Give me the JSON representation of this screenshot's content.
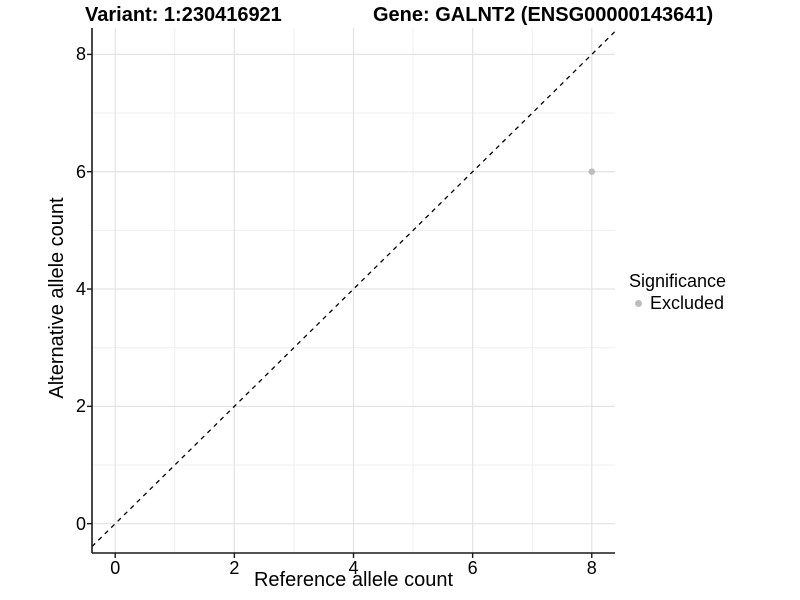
{
  "chart_data": {
    "type": "scatter",
    "titles": {
      "variant": "Variant: 1:230416921",
      "gene": "Gene: GALNT2 (ENSG00000143641)"
    },
    "xlabel": "Reference allele count",
    "ylabel": "Alternative allele count",
    "xlim": [
      -0.39,
      8.39
    ],
    "ylim": [
      -0.5,
      8.45
    ],
    "xticks": [
      0,
      2,
      4,
      6,
      8
    ],
    "yticks": [
      0,
      2,
      4,
      6,
      8
    ],
    "xticks_minor": [
      1,
      3,
      5,
      7
    ],
    "yticks_minor": [
      1,
      3,
      5,
      7
    ],
    "grid": "major+minor",
    "points": [
      {
        "x": 8,
        "y": 6,
        "series": "Excluded"
      }
    ],
    "reference_line": {
      "type": "identity",
      "slope": 1,
      "intercept": 0,
      "style": "dashed"
    },
    "legend": {
      "title": "Significance",
      "position": "right",
      "entries": [
        {
          "label": "Excluded",
          "color": "#bdbdbd"
        }
      ]
    },
    "colors": {
      "point": "#bdbdbd",
      "grid_major": "#e3e3e3",
      "grid_minor": "#efefef",
      "axis": "#1a1a1a",
      "reference_line": "#000000",
      "text": "#000000",
      "background": "#ffffff"
    }
  }
}
